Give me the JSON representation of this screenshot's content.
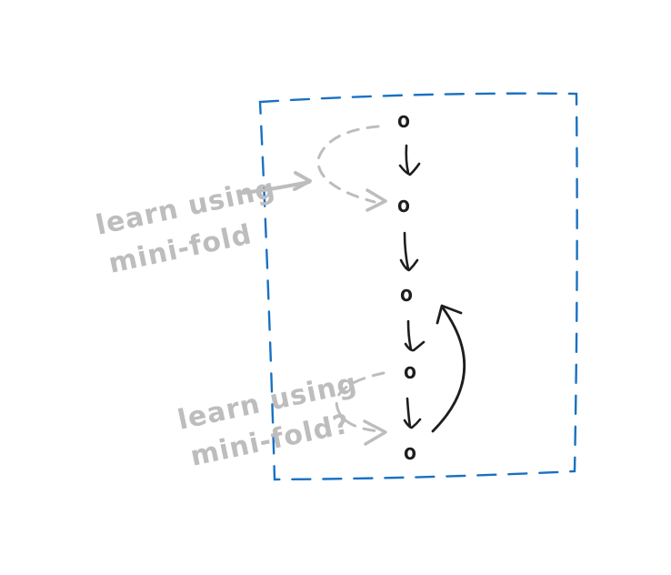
{
  "nodes": [
    "o",
    "o",
    "o",
    "o",
    "o"
  ],
  "annotations": [
    {
      "line1": "learn using",
      "line2": "mini-fold"
    },
    {
      "line1": "learn using",
      "line2": "mini-fold?"
    }
  ],
  "colors": {
    "frame": "#1971c2",
    "ink": "#1e1e1e",
    "annotation": "#bdbdbd"
  }
}
